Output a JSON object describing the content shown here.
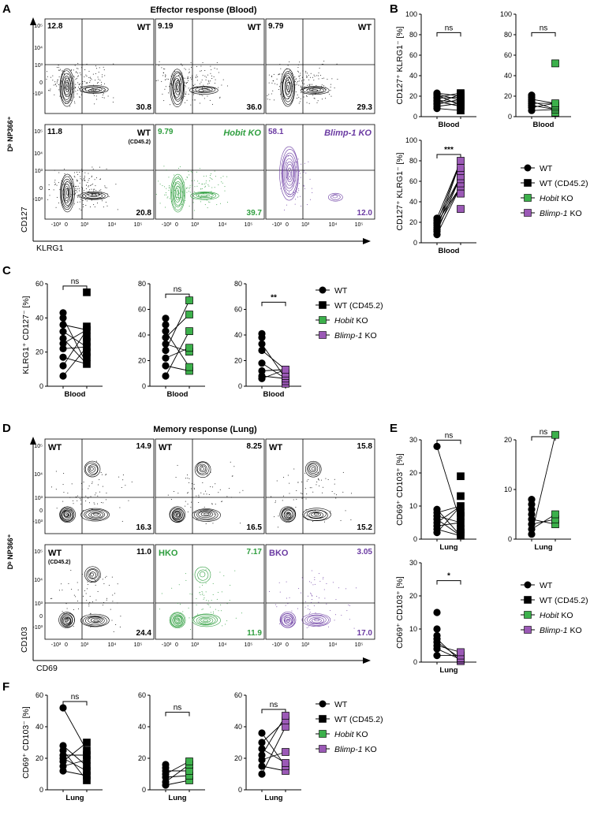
{
  "colors": {
    "wt": "#000000",
    "hobit": "#2e9e3e",
    "blimp": "#6a3aa2",
    "blimp_fill": "#9b59b6",
    "hobit_fill": "#3cb04b"
  },
  "legend": [
    {
      "label": "WT",
      "marker": "circle"
    },
    {
      "label": "WT (CD45.2)",
      "marker": "square"
    },
    {
      "label_italic": "Hobit",
      "label_rest": " KO",
      "marker": "square-green"
    },
    {
      "label_italic": "Blimp-1",
      "label_rest": " KO",
      "marker": "square-purple"
    }
  ],
  "panelA": {
    "letter": "A",
    "title": "Effector response (Blood)",
    "y_axis": "Dᵇ NP366⁺",
    "facs_y": "CD127",
    "facs_x": "KLRG1",
    "ticks_y": [
      "10⁵",
      "10⁴",
      "10³",
      "0",
      "-10³"
    ],
    "ticks_x": [
      "-10³",
      "0",
      "10³",
      "10⁴",
      "10⁵"
    ],
    "plots": [
      {
        "label": "WT",
        "sub": "",
        "tl": "12.8",
        "br": "30.8",
        "color": "wt"
      },
      {
        "label": "WT",
        "sub": "",
        "tl": "9.19",
        "br": "36.0",
        "color": "wt"
      },
      {
        "label": "WT",
        "sub": "",
        "tl": "9.79",
        "br": "29.3",
        "color": "wt"
      },
      {
        "label": "WT",
        "sub": "(CD45.2)",
        "tl": "11.8",
        "br": "20.8",
        "color": "wt"
      },
      {
        "label": "Hobit KO",
        "sub": "",
        "tl": "9.79",
        "br": "39.7",
        "color": "hobit"
      },
      {
        "label": "Blimp-1 KO",
        "sub": "",
        "tl": "58.1",
        "br": "12.0",
        "color": "blimp"
      }
    ]
  },
  "panelD": {
    "letter": "D",
    "title": "Memory response (Lung)",
    "y_axis": "Dᵇ NP366⁺",
    "facs_y": "CD103",
    "facs_x": "CD69",
    "plots": [
      {
        "label": "WT",
        "sub": "",
        "tr": "14.9",
        "br": "16.3",
        "color": "wt"
      },
      {
        "label": "WT",
        "sub": "",
        "tr": "8.25",
        "br": "16.5",
        "color": "wt"
      },
      {
        "label": "WT",
        "sub": "",
        "tr": "15.8",
        "br": "15.2",
        "color": "wt"
      },
      {
        "label": "WT",
        "sub": "(CD45.2)",
        "tr": "11.0",
        "br": "24.4",
        "color": "wt"
      },
      {
        "label": "HKO",
        "sub": "",
        "tr": "7.17",
        "br": "11.9",
        "color": "hobit"
      },
      {
        "label": "BKO",
        "sub": "",
        "tr": "3.05",
        "br": "17.0",
        "color": "blimp"
      }
    ]
  },
  "chart_data": [
    {
      "panel": "B",
      "type": "scatter",
      "ylabel": "CD127⁺ KLRG1⁻ [%]",
      "xlabel": "Blood",
      "ylim": [
        0,
        100
      ],
      "yticks": [
        0,
        20,
        40,
        60,
        80,
        100
      ],
      "sig": "ns",
      "series": [
        {
          "name": "WT",
          "values": [
            8,
            10,
            12,
            13,
            15,
            16,
            18,
            19,
            21,
            22,
            23
          ]
        },
        {
          "name": "WT (CD45.2)",
          "values": [
            6,
            10,
            11,
            13,
            14,
            16,
            17,
            19,
            20,
            22,
            23
          ]
        }
      ]
    },
    {
      "panel": "B",
      "type": "scatter",
      "ylabel": "",
      "xlabel": "Blood",
      "ylim": [
        0,
        100
      ],
      "yticks": [
        0,
        20,
        40,
        60,
        80,
        100
      ],
      "sig": "ns",
      "series": [
        {
          "name": "WT",
          "values": [
            6,
            9,
            11,
            13,
            15,
            17,
            19,
            21
          ]
        },
        {
          "name": "Hobit KO",
          "values": [
            4,
            7,
            9,
            11,
            13,
            52
          ]
        }
      ]
    },
    {
      "panel": "B",
      "type": "scatter",
      "ylabel": "CD127⁺ KLRG1⁻ [%]",
      "xlabel": "Blood",
      "ylim": [
        0,
        100
      ],
      "yticks": [
        0,
        20,
        40,
        60,
        80,
        100
      ],
      "sig": "***",
      "series": [
        {
          "name": "WT",
          "values": [
            8,
            11,
            13,
            15,
            17,
            19,
            20,
            22,
            24
          ]
        },
        {
          "name": "Blimp-1 KO",
          "values": [
            33,
            48,
            55,
            58,
            62,
            65,
            70,
            73,
            80
          ]
        }
      ]
    },
    {
      "panel": "C",
      "type": "scatter",
      "ylabel": "KLRG1⁺ CD127⁻ [%]",
      "xlabel": "Blood",
      "ylim": [
        0,
        60
      ],
      "yticks": [
        0,
        20,
        40,
        60
      ],
      "sig": "ns",
      "series": [
        {
          "name": "WT",
          "values": [
            6,
            12,
            17,
            22,
            25,
            28,
            32,
            36,
            40,
            43
          ]
        },
        {
          "name": "WT (CD45.2)",
          "values": [
            13,
            17,
            20,
            23,
            26,
            29,
            33,
            35,
            55
          ]
        }
      ]
    },
    {
      "panel": "C",
      "type": "scatter",
      "ylabel": "",
      "xlabel": "Blood",
      "ylim": [
        0,
        80
      ],
      "yticks": [
        0,
        20,
        40,
        60,
        80
      ],
      "sig": "ns",
      "series": [
        {
          "name": "WT",
          "values": [
            8,
            16,
            22,
            28,
            33,
            38,
            43,
            48,
            53
          ]
        },
        {
          "name": "Hobit KO",
          "values": [
            12,
            15,
            27,
            30,
            43,
            56,
            67
          ]
        }
      ]
    },
    {
      "panel": "C",
      "type": "scatter",
      "ylabel": "",
      "xlabel": "Blood",
      "ylim": [
        0,
        80
      ],
      "yticks": [
        0,
        20,
        40,
        60,
        80
      ],
      "sig": "**",
      "series": [
        {
          "name": "WT",
          "values": [
            6,
            8,
            12,
            18,
            28,
            33,
            38,
            41
          ]
        },
        {
          "name": "Blimp-1 KO",
          "values": [
            2,
            4,
            6,
            8,
            10,
            13
          ]
        }
      ]
    },
    {
      "panel": "E",
      "type": "scatter",
      "ylabel": "CD69⁺ CD103⁺ [%]",
      "xlabel": "Lung",
      "ylim": [
        0,
        30
      ],
      "yticks": [
        0,
        10,
        20,
        30
      ],
      "sig": "ns",
      "series": [
        {
          "name": "WT",
          "values": [
            2,
            3,
            4,
            5,
            6,
            7,
            8,
            9,
            28
          ]
        },
        {
          "name": "WT (CD45.2)",
          "values": [
            1,
            2,
            3,
            5,
            7,
            8,
            10,
            13,
            19
          ]
        }
      ]
    },
    {
      "panel": "E",
      "type": "scatter",
      "ylabel": "",
      "xlabel": "Lung",
      "ylim": [
        0,
        20
      ],
      "yticks": [
        0,
        10,
        20
      ],
      "sig": "ns",
      "series": [
        {
          "name": "WT",
          "values": [
            1,
            2,
            3,
            4,
            5,
            6,
            7,
            8
          ]
        },
        {
          "name": "Hobit KO",
          "values": [
            3,
            4,
            5,
            21
          ]
        }
      ]
    },
    {
      "panel": "E",
      "type": "scatter",
      "ylabel": "CD69⁺ CD103⁺ [%]",
      "xlabel": "Lung",
      "ylim": [
        0,
        30
      ],
      "yticks": [
        0,
        10,
        20,
        30
      ],
      "sig": "*",
      "series": [
        {
          "name": "WT",
          "values": [
            2,
            4,
            5,
            6,
            7,
            8,
            10,
            15
          ]
        },
        {
          "name": "Blimp-1 KO",
          "values": [
            0.3,
            0.8,
            1.2,
            2,
            3
          ]
        }
      ]
    },
    {
      "panel": "F",
      "type": "scatter",
      "ylabel": "CD69⁺ CD103⁻ [%]",
      "xlabel": "Lung",
      "ylim": [
        0,
        60
      ],
      "yticks": [
        0,
        20,
        40,
        60
      ],
      "sig": "ns",
      "series": [
        {
          "name": "WT",
          "values": [
            12,
            15,
            18,
            20,
            22,
            25,
            28,
            52
          ]
        },
        {
          "name": "WT (CD45.2)",
          "values": [
            6,
            9,
            12,
            15,
            19,
            22,
            25,
            30
          ]
        }
      ]
    },
    {
      "panel": "F",
      "type": "scatter",
      "ylabel": "",
      "xlabel": "Lung",
      "ylim": [
        0,
        60
      ],
      "yticks": [
        0,
        20,
        40,
        60
      ],
      "sig": "ns",
      "series": [
        {
          "name": "WT",
          "values": [
            3,
            5,
            8,
            10,
            12,
            14,
            16
          ]
        },
        {
          "name": "Hobit KO",
          "values": [
            6,
            9,
            12,
            16,
            18
          ]
        }
      ]
    },
    {
      "panel": "F",
      "type": "scatter",
      "ylabel": "",
      "xlabel": "Lung",
      "ylim": [
        0,
        60
      ],
      "yticks": [
        0,
        20,
        40,
        60
      ],
      "sig": "ns",
      "series": [
        {
          "name": "WT",
          "values": [
            10,
            15,
            19,
            22,
            26,
            30,
            36
          ]
        },
        {
          "name": "Blimp-1 KO",
          "values": [
            12,
            15,
            17,
            24,
            40,
            44,
            47
          ]
        }
      ]
    }
  ]
}
